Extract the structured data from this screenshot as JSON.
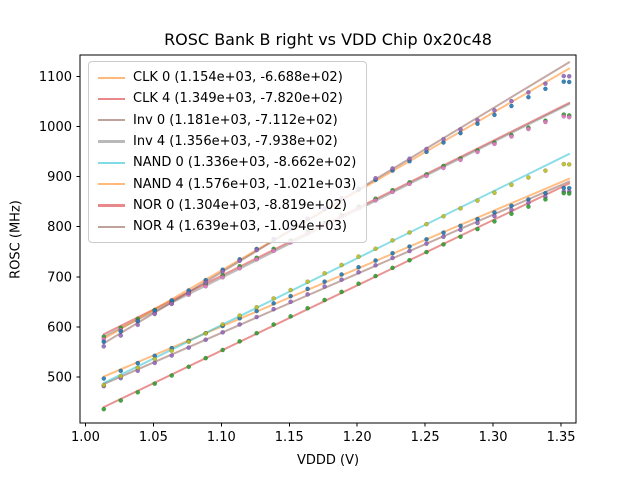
{
  "title": "ROSC Bank B right vs VDD Chip 0x20c48",
  "axes": {
    "xlabel": "VDDD (V)",
    "ylabel": "ROSC (MHz)"
  },
  "chart_data": {
    "type": "scatter",
    "title": "ROSC Bank B right vs VDD Chip 0x20c48",
    "xlabel": "VDDD (V)",
    "ylabel": "ROSC (MHz)",
    "xlim": [
      0.996,
      1.361
    ],
    "ylim": [
      408,
      1143
    ],
    "xticks": [
      1.0,
      1.05,
      1.1,
      1.15,
      1.2,
      1.25,
      1.3,
      1.35
    ],
    "yticks": [
      500,
      600,
      700,
      800,
      900,
      1000,
      1100
    ],
    "grid": false,
    "legend_position": "upper-left",
    "x": [
      1.0135,
      1.026,
      1.0385,
      1.051,
      1.0635,
      1.076,
      1.0885,
      1.101,
      1.1135,
      1.126,
      1.1385,
      1.151,
      1.1635,
      1.176,
      1.1885,
      1.201,
      1.2135,
      1.226,
      1.2385,
      1.251,
      1.2635,
      1.276,
      1.2885,
      1.301,
      1.3135,
      1.326,
      1.3385,
      1.352,
      1.356
    ],
    "series": [
      {
        "name": "CLK 0",
        "legend_label": "CLK 0 (1.154e+03, -6.688e+02)",
        "slope": 1154,
        "intercept": -668.8,
        "line_color": "#ff7f0e",
        "marker_color": "#1f77b4",
        "residuals": [
          -4,
          -3,
          -2,
          -2,
          -1,
          -1,
          0,
          0,
          1,
          1,
          2,
          2,
          2,
          2,
          2,
          2,
          1,
          1,
          0,
          0,
          -1,
          -2,
          -3,
          -4,
          -5,
          -7,
          -9,
          -14,
          -19
        ]
      },
      {
        "name": "CLK 4",
        "legend_label": "CLK 4 (1.349e+03, -7.820e+02)",
        "slope": 1349,
        "intercept": -782.0,
        "line_color": "#d62728",
        "marker_color": "#2ca02c",
        "residuals": [
          -5,
          -4,
          -3,
          -2,
          -2,
          -1,
          -1,
          0,
          1,
          1,
          2,
          2,
          3,
          3,
          2,
          2,
          1,
          1,
          0,
          -1,
          -1,
          -3,
          -4,
          -5,
          -7,
          -9,
          -12,
          -18,
          -25
        ]
      },
      {
        "name": "Inv 0",
        "legend_label": "Inv 0 (1.181e+03, -7.112e+02)",
        "slope": 1181,
        "intercept": -711.2,
        "line_color": "#8c564b",
        "marker_color": "#9467bd",
        "residuals": [
          -4,
          -3,
          -3,
          -2,
          -2,
          -1,
          0,
          0,
          1,
          1,
          2,
          2,
          2,
          3,
          2,
          2,
          1,
          1,
          0,
          0,
          -1,
          -2,
          -3,
          -4,
          -6,
          -7,
          -10,
          -15,
          -20
        ]
      },
      {
        "name": "Inv 4",
        "legend_label": "Inv 4 (1.356e+03, -7.938e+02)",
        "slope": 1356,
        "intercept": -793.8,
        "line_color": "#7f7f7f",
        "marker_color": "#e377c2",
        "residuals": [
          -5,
          -4,
          -3,
          -3,
          -2,
          -1,
          -1,
          0,
          1,
          2,
          2,
          2,
          3,
          3,
          3,
          2,
          1,
          1,
          0,
          -1,
          -2,
          -3,
          -4,
          -5,
          -7,
          -9,
          -12,
          -19,
          -26
        ]
      },
      {
        "name": "NAND 0",
        "legend_label": "NAND 0 (1.336e+03, -8.662e+02)",
        "slope": 1336,
        "intercept": -866.2,
        "line_color": "#17becf",
        "marker_color": "#bcbd22",
        "residuals": [
          -4,
          -3,
          -3,
          -2,
          -2,
          -1,
          -1,
          0,
          1,
          1,
          2,
          2,
          2,
          2,
          2,
          2,
          1,
          1,
          0,
          0,
          -1,
          -2,
          -3,
          -4,
          -5,
          -7,
          -10,
          -15,
          -21
        ]
      },
      {
        "name": "NAND 4",
        "legend_label": "NAND 4 (1.576e+03, -1.021e+03)",
        "slope": 1576,
        "intercept": -1021.0,
        "line_color": "#ff7f0e",
        "marker_color": "#1f77b4",
        "residuals": [
          -6,
          -5,
          -4,
          -3,
          -2,
          -2,
          -1,
          0,
          1,
          2,
          2,
          3,
          3,
          3,
          3,
          2,
          2,
          1,
          0,
          -1,
          -2,
          -3,
          -4,
          -6,
          -8,
          -10,
          -13,
          -20,
          -27
        ]
      },
      {
        "name": "NOR 0",
        "legend_label": "NOR 0 (1.304e+03, -8.819e+02)",
        "slope": 1304,
        "intercept": -881.9,
        "line_color": "#d62728",
        "marker_color": "#2ca02c",
        "residuals": [
          -4,
          -3,
          -3,
          -2,
          -2,
          -1,
          0,
          0,
          1,
          1,
          2,
          2,
          2,
          2,
          2,
          2,
          1,
          1,
          0,
          0,
          -1,
          -2,
          -3,
          -4,
          -5,
          -7,
          -9,
          -14,
          -20
        ]
      },
      {
        "name": "NOR 4",
        "legend_label": "NOR 4 (1.639e+03, -1.094e+03)",
        "slope": 1639,
        "intercept": -1094.0,
        "line_color": "#8c564b",
        "marker_color": "#9467bd",
        "residuals": [
          -6,
          -5,
          -4,
          -3,
          -3,
          -2,
          -1,
          0,
          1,
          2,
          2,
          3,
          3,
          3,
          3,
          2,
          2,
          1,
          0,
          -1,
          -2,
          -3,
          -5,
          -6,
          -8,
          -11,
          -14,
          -21,
          -28
        ]
      }
    ],
    "style": {
      "line_alpha": 0.5,
      "line_width": 2,
      "marker_radius": 2.1,
      "spine_color": "#000000",
      "background": "#ffffff",
      "legend_border": "#cccccc"
    }
  }
}
